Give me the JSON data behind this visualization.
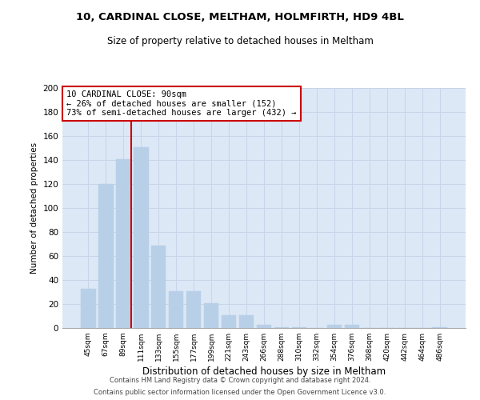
{
  "title_line1": "10, CARDINAL CLOSE, MELTHAM, HOLMFIRTH, HD9 4BL",
  "title_line2": "Size of property relative to detached houses in Meltham",
  "xlabel": "Distribution of detached houses by size in Meltham",
  "ylabel": "Number of detached properties",
  "categories": [
    "45sqm",
    "67sqm",
    "89sqm",
    "111sqm",
    "133sqm",
    "155sqm",
    "177sqm",
    "199sqm",
    "221sqm",
    "243sqm",
    "266sqm",
    "288sqm",
    "310sqm",
    "332sqm",
    "354sqm",
    "376sqm",
    "398sqm",
    "420sqm",
    "442sqm",
    "464sqm",
    "486sqm"
  ],
  "values": [
    33,
    120,
    141,
    151,
    69,
    31,
    31,
    21,
    11,
    11,
    3,
    1,
    1,
    0,
    3,
    3,
    0,
    0,
    0,
    0,
    1
  ],
  "bar_color": "#b8cfe8",
  "bar_edgecolor": "#b8cfe8",
  "vline_x_index": 2,
  "vline_color": "#cc0000",
  "annotation_text": "10 CARDINAL CLOSE: 90sqm\n← 26% of detached houses are smaller (152)\n73% of semi-detached houses are larger (432) →",
  "annotation_box_facecolor": "#ffffff",
  "annotation_box_edgecolor": "#cc0000",
  "ylim": [
    0,
    200
  ],
  "yticks": [
    0,
    20,
    40,
    60,
    80,
    100,
    120,
    140,
    160,
    180,
    200
  ],
  "grid_color": "#c8d4e8",
  "background_color": "#dce8f5",
  "footer_line1": "Contains HM Land Registry data © Crown copyright and database right 2024.",
  "footer_line2": "Contains public sector information licensed under the Open Government Licence v3.0."
}
